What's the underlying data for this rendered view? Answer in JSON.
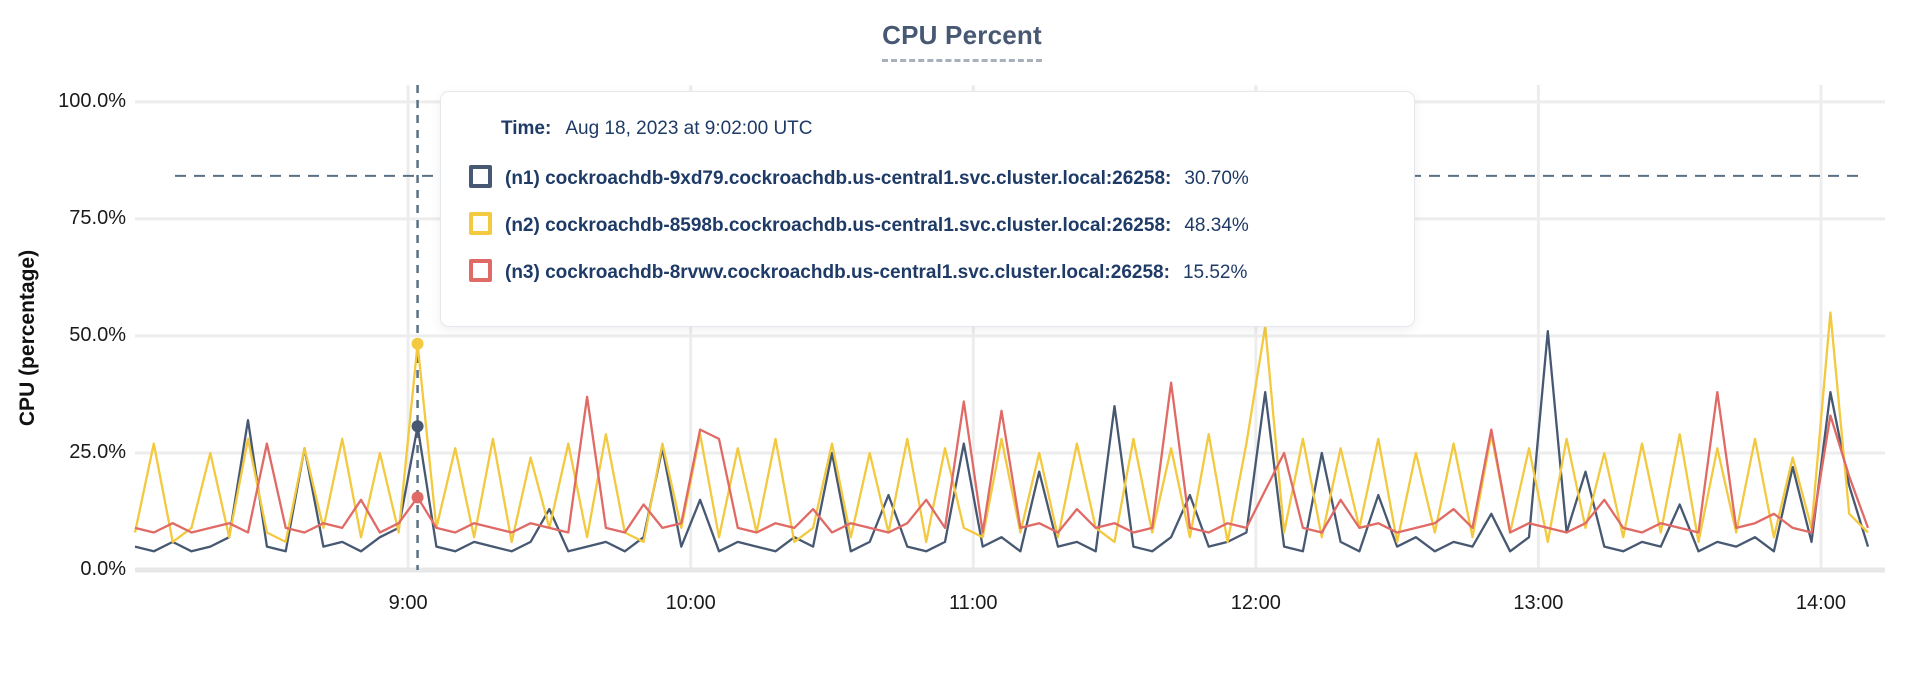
{
  "title": "CPU Percent",
  "colors": {
    "accent_navy": "#475872",
    "series_n1": "#475872",
    "series_n2": "#F2C93F",
    "series_n3": "#E06A65",
    "crosshair": "#5a7184",
    "gridline": "#ededed",
    "tooltip_text": "#1e3a66"
  },
  "tooltip": {
    "time_label": "Time:",
    "time_value": "Aug 18, 2023 at 9:02:00 UTC",
    "rows": [
      {
        "name": "(n1) cockroachdb-9xd79.cockroachdb.us-central1.svc.cluster.local:26258:",
        "value": "30.70%",
        "color": "#475872"
      },
      {
        "name": "(n2) cockroachdb-8598b.cockroachdb.us-central1.svc.cluster.local:26258:",
        "value": "48.34%",
        "color": "#F2C93F"
      },
      {
        "name": "(n3) cockroachdb-8rvwv.cockroachdb.us-central1.svc.cluster.local:26258:",
        "value": "15.52%",
        "color": "#E06A65"
      }
    ]
  },
  "chart_data": {
    "type": "line",
    "title": "CPU Percent",
    "ylabel": "CPU (percentage)",
    "ylim": [
      0,
      100
    ],
    "y_top_value": 103.6,
    "y_ticks": [
      "100.0%",
      "75.0%",
      "50.0%",
      "25.0%",
      "0.0%"
    ],
    "y_tick_values": [
      100,
      75,
      50,
      25,
      0
    ],
    "x_ticks": [
      "9:00",
      "10:00",
      "11:00",
      "12:00",
      "13:00",
      "14:00"
    ],
    "x_tick_minutes": [
      540,
      600,
      660,
      720,
      780,
      840
    ],
    "x_domain_minutes": [
      482,
      853.6
    ],
    "x_start_minute": 482,
    "x_step_minutes": 4,
    "grid": true,
    "legend_position": "tooltip",
    "threshold_line_pct": 84.2,
    "hover_index": 15,
    "hover_time": "9:02",
    "series": [
      {
        "name": "(n1) cockroachdb-9xd79.cockroachdb.us-central1.svc.cluster.local:26258",
        "color": "#475872",
        "values": [
          5,
          4,
          6,
          4,
          5,
          7,
          32,
          5,
          4,
          26,
          5,
          6,
          4,
          7,
          9,
          30.7,
          5,
          4,
          6,
          5,
          4,
          6,
          13,
          4,
          5,
          6,
          4,
          7,
          26,
          5,
          15,
          4,
          6,
          5,
          4,
          7,
          5,
          25,
          4,
          6,
          16,
          5,
          4,
          6,
          27,
          5,
          7,
          4,
          21,
          5,
          6,
          4,
          35,
          5,
          4,
          7,
          16,
          5,
          6,
          8,
          38,
          5,
          4,
          25,
          6,
          4,
          16,
          5,
          7,
          4,
          6,
          5,
          12,
          4,
          7,
          51,
          8,
          21,
          5,
          4,
          6,
          5,
          14,
          4,
          6,
          5,
          7,
          4,
          22,
          6,
          38,
          18,
          5
        ]
      },
      {
        "name": "(n2) cockroachdb-8598b.cockroachdb.us-central1.svc.cluster.local:26258",
        "color": "#F2C93F",
        "values": [
          8,
          27,
          6,
          9,
          25,
          7,
          28,
          8,
          6,
          26,
          9,
          28,
          7,
          25,
          8,
          48.34,
          9,
          26,
          7,
          28,
          6,
          24,
          9,
          27,
          7,
          29,
          8,
          6,
          27,
          9,
          29,
          7,
          26,
          8,
          28,
          6,
          9,
          27,
          7,
          25,
          8,
          28,
          6,
          26,
          9,
          7,
          28,
          8,
          25,
          7,
          27,
          9,
          6,
          28,
          8,
          26,
          7,
          29,
          6,
          27,
          52,
          8,
          28,
          7,
          26,
          9,
          28,
          6,
          25,
          8,
          27,
          7,
          29,
          8,
          26,
          6,
          28,
          9,
          25,
          7,
          27,
          8,
          29,
          6,
          26,
          8,
          28,
          7,
          24,
          9,
          55,
          12,
          8
        ]
      },
      {
        "name": "(n3) cockroachdb-8rvwv.cockroachdb.us-central1.svc.cluster.local:26258",
        "color": "#E06A65",
        "values": [
          9,
          8,
          10,
          8,
          9,
          10,
          8,
          27,
          9,
          8,
          10,
          9,
          15,
          8,
          10,
          15.52,
          9,
          8,
          10,
          9,
          8,
          10,
          9,
          8,
          37,
          9,
          8,
          14,
          9,
          10,
          30,
          28,
          9,
          8,
          10,
          9,
          13,
          8,
          10,
          9,
          8,
          10,
          15,
          9,
          36,
          8,
          34,
          9,
          10,
          8,
          13,
          9,
          10,
          8,
          9,
          40,
          9,
          8,
          10,
          9,
          17,
          25,
          9,
          8,
          15,
          9,
          10,
          8,
          9,
          10,
          13,
          9,
          30,
          8,
          10,
          9,
          8,
          10,
          15,
          9,
          8,
          10,
          9,
          8,
          38,
          9,
          10,
          12,
          9,
          8,
          33,
          20,
          9
        ]
      }
    ]
  }
}
